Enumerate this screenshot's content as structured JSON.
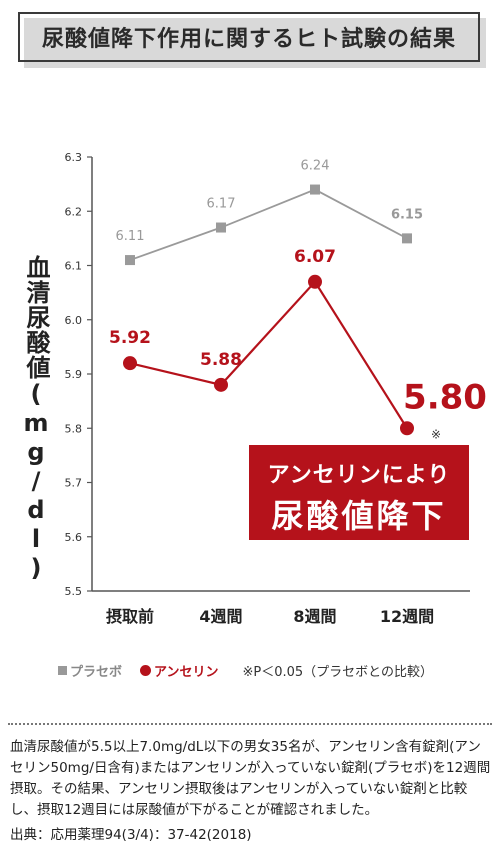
{
  "title": "尿酸値降下作用に関するヒト試験の結果",
  "chart_data": {
    "type": "line",
    "ylabel": "血清尿酸値(mg/dl)",
    "ylim": [
      5.5,
      6.3
    ],
    "yticks": [
      "5.5",
      "5.6",
      "5.7",
      "5.8",
      "5.9",
      "6.0",
      "6.1",
      "6.2",
      "6.3"
    ],
    "categories": [
      "摂取前",
      "4週間",
      "8週間",
      "12週間"
    ],
    "series": [
      {
        "name": "プラセボ",
        "values": [
          6.11,
          6.17,
          6.24,
          6.15
        ],
        "labels": [
          "6.11",
          "6.17",
          "6.24",
          "6.15"
        ],
        "color": "#9a9a9a",
        "marker": "square"
      },
      {
        "name": "アンセリン",
        "values": [
          5.92,
          5.88,
          6.07,
          5.8
        ],
        "labels": [
          "5.92",
          "5.88",
          "6.07",
          "5.80"
        ],
        "color": "#b5121b",
        "marker": "circle"
      }
    ],
    "significance_mark": "※",
    "grid": false,
    "legend": "bottom"
  },
  "callout": {
    "line1": "アンセリンにより",
    "line2": "尿酸値降下"
  },
  "legend": {
    "placebo": "プラセボ",
    "anserine": "アンセリン",
    "note": "※P＜0.05（プラセボとの比較）"
  },
  "description": "血清尿酸値が5.5以上7.0mg/dL以下の男女35名が、アンセリン含有錠剤(アンセリン50mg/日含有)またはアンセリンが入っていない錠剤(プラセボ)を12週間摂取。その結果、アンセリン摂取後はアンセリンが入っていない錠剤と比較し、摂取12週目には尿酸値が下がることが確認されました。",
  "source": "出典：応用薬理94(3/4)：37-42(2018)"
}
